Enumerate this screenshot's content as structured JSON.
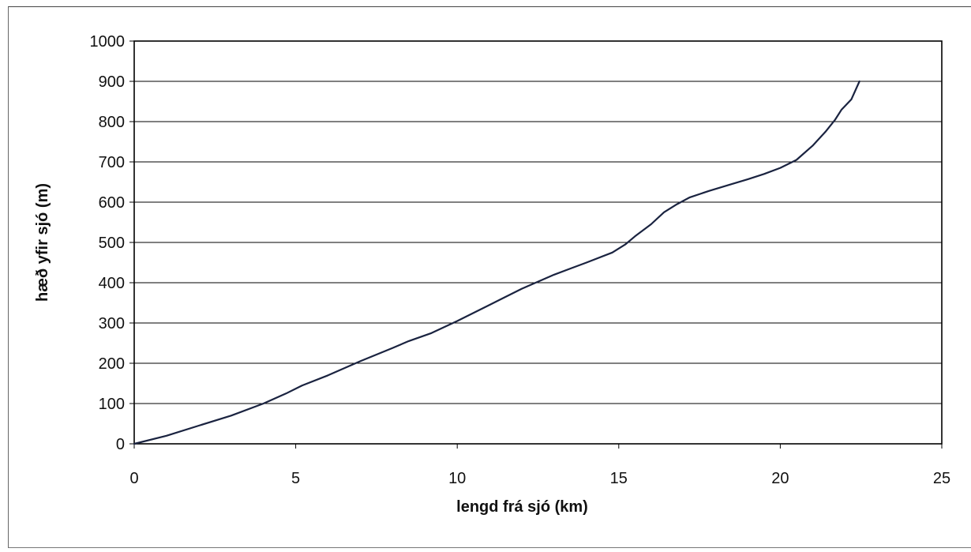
{
  "chart_data": {
    "type": "line",
    "title": "",
    "xlabel": "lengd frá sjó (km)",
    "ylabel": "hæð yfir sjó (m)",
    "xlim": [
      0,
      25
    ],
    "ylim": [
      0,
      1000
    ],
    "x_ticks": [
      "0",
      "5",
      "10",
      "15",
      "20",
      "25"
    ],
    "y_ticks": [
      "0",
      "100",
      "200",
      "300",
      "400",
      "500",
      "600",
      "700",
      "800",
      "900",
      "1000"
    ],
    "grid": "horizontal",
    "legend": "none",
    "series": [
      {
        "color": "#1a2340",
        "x": [
          0,
          1,
          2,
          3,
          4,
          4.7,
          5.2,
          6,
          7,
          8,
          8.5,
          9.2,
          10,
          11,
          12,
          13,
          13.5,
          14,
          14.8,
          15.2,
          15.5,
          16,
          16.4,
          16.8,
          17.2,
          17.8,
          18.5,
          19,
          19.5,
          20,
          20.5,
          21,
          21.4,
          21.7,
          21.9,
          22.2,
          22.45
        ],
        "y": [
          0,
          20,
          45,
          70,
          100,
          125,
          145,
          170,
          205,
          238,
          255,
          275,
          305,
          345,
          385,
          420,
          435,
          450,
          475,
          495,
          515,
          545,
          575,
          595,
          612,
          628,
          645,
          657,
          670,
          685,
          705,
          740,
          775,
          805,
          830,
          855,
          900
        ]
      }
    ]
  }
}
